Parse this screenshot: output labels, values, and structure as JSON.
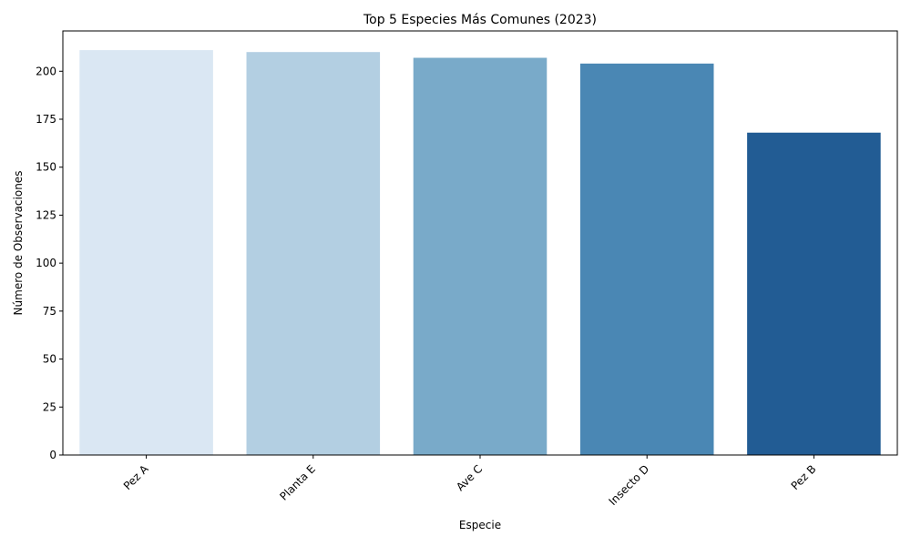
{
  "chart_data": {
    "type": "bar",
    "title": "Top 5 Especies Más Comunes (2023)",
    "xlabel": "Especie",
    "ylabel": "Número de Observaciones",
    "categories": [
      "Pez A",
      "Planta E",
      "Ave C",
      "Insecto D",
      "Pez B"
    ],
    "values": [
      211,
      210,
      207,
      204,
      168
    ],
    "colors": [
      "#dae7f3",
      "#b3cfe2",
      "#79aac9",
      "#4a87b4",
      "#225c94"
    ],
    "ylim": [
      0,
      221
    ],
    "yticks": [
      0,
      25,
      50,
      75,
      100,
      125,
      150,
      175,
      200
    ],
    "grid": false,
    "legend": "none"
  }
}
